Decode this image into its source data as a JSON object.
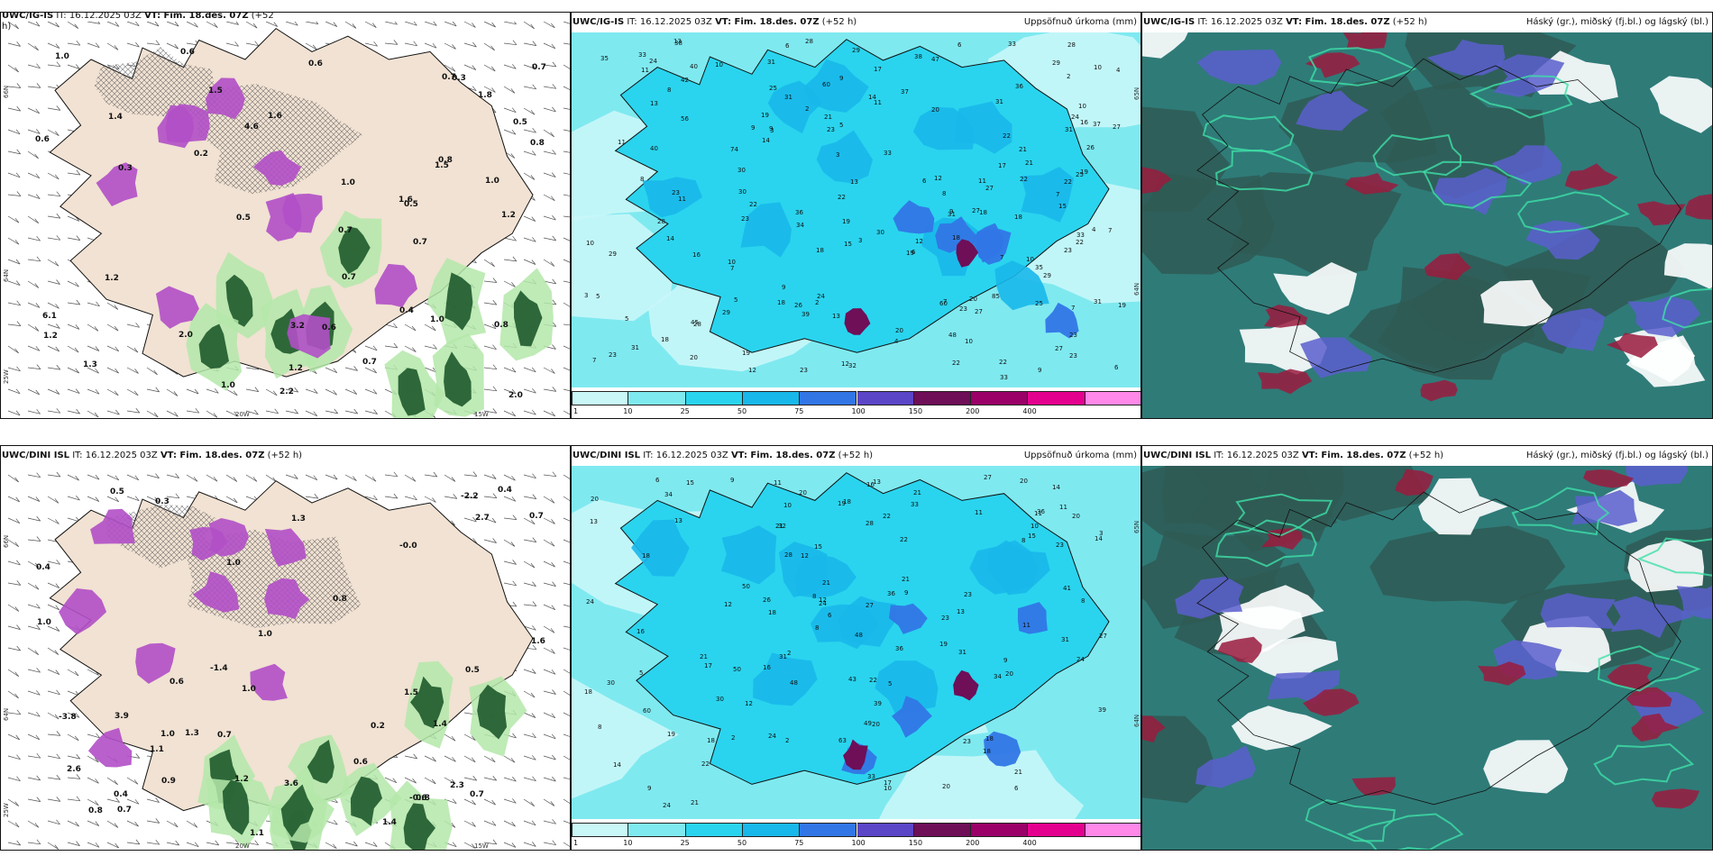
{
  "panels": {
    "top_left": {
      "title_model": "UWC/IG-IS",
      "title_it": "IT: 16.12.2025 03Z",
      "title_vt": "VT: Fim. 18.des. 07Z",
      "title_lead": "(+52",
      "title_cont": "h)",
      "lat_labels": [
        "66N",
        "64N",
        "25W"
      ],
      "lon_labels": [
        "20W",
        "15W"
      ],
      "wind_values": [
        "0.6",
        "0.2",
        "0.7",
        "0.7",
        "1.0",
        "0.5",
        "1.2",
        "0.5",
        "1.0",
        "0.4",
        "0.3",
        "2.2",
        "1.6",
        "0.6",
        "1.2",
        "2.0",
        "3.2",
        "1.5",
        "1.0",
        "1.3",
        "0.5",
        "0.7",
        "0.8",
        "1.5",
        "0.6",
        "4.6",
        "6.1",
        "2.0",
        "1.2",
        "0.3",
        "1.0",
        "1.4",
        "0.7",
        "1.8",
        "1.6",
        "0.6",
        "0.8",
        "1.2",
        "1.0",
        "0.8",
        "0.7",
        "0.7"
      ]
    },
    "top_mid": {
      "title_model": "UWC/IG-IS",
      "title_it": "IT: 16.12.2025 03Z",
      "title_vt": "VT: Fim. 18.des. 07Z",
      "title_lead": "(+52 h)",
      "title_right": "Uppsöfnuð úrkoma (mm)",
      "lat_labels": [
        "65N",
        "64N"
      ],
      "precip_values": [
        "3",
        "2",
        "2",
        "16",
        "19",
        "22",
        "14",
        "5",
        "6",
        "2",
        "31",
        "74",
        "11",
        "23",
        "22",
        "5",
        "6",
        "9",
        "15",
        "11",
        "40",
        "12",
        "3",
        "7",
        "17",
        "27",
        "38",
        "36",
        "12",
        "25",
        "7",
        "26",
        "56",
        "8",
        "7",
        "47",
        "13",
        "33",
        "30",
        "31",
        "8",
        "3",
        "45",
        "31",
        "15",
        "16",
        "11",
        "27",
        "4",
        "10",
        "9",
        "19",
        "18",
        "12",
        "31",
        "4",
        "7",
        "35",
        "10",
        "18",
        "20",
        "6",
        "7",
        "23",
        "13",
        "14",
        "20",
        "39",
        "60",
        "22",
        "3",
        "9",
        "5",
        "10",
        "40",
        "7",
        "37",
        "18",
        "11",
        "23",
        "23",
        "18",
        "27",
        "6",
        "33",
        "48",
        "21",
        "4",
        "36",
        "10",
        "27",
        "18",
        "13",
        "26",
        "7",
        "24",
        "9",
        "19",
        "18",
        "6",
        "31",
        "30",
        "38",
        "34",
        "21",
        "22",
        "9",
        "28",
        "10",
        "29",
        "31",
        "85",
        "14",
        "27",
        "8",
        "23",
        "17",
        "5",
        "9",
        "12",
        "19",
        "20",
        "29",
        "22",
        "35",
        "13",
        "11",
        "25",
        "10",
        "22",
        "20",
        "37",
        "28",
        "24",
        "33",
        "23",
        "29",
        "23",
        "25",
        "28",
        "19",
        "22",
        "32",
        "33",
        "21",
        "22",
        "23",
        "30",
        "19",
        "29",
        "23",
        "10",
        "24",
        "31",
        "60",
        "28",
        "29",
        "33",
        "42"
      ],
      "colorbar": {
        "ticks": [
          "1",
          "10",
          "25",
          "50",
          "75",
          "100",
          "150",
          "200",
          "400"
        ],
        "colors": [
          "#c9f7f8",
          "#7fe9f0",
          "#2ad4ee",
          "#18b8ea",
          "#3276e6",
          "#5a46c6",
          "#6e0f58",
          "#9a0068",
          "#e4008e",
          "#ff88e8"
        ]
      }
    },
    "top_right": {
      "title_model": "UWC/IG-IS",
      "title_it": "IT: 16.12.2025 03Z",
      "title_vt": "VT: Fim. 18.des. 07Z",
      "title_lead": "(+52 h)",
      "title_right": "Háský (gr.), miðský (fj.bl.) og lágský (bl.)"
    },
    "bottom_left": {
      "title_model": "UWC/DINI ISL",
      "title_it": "IT: 16.12.2025 03Z",
      "title_vt": "VT: Fim. 18.des. 07Z",
      "title_lead": "(+52 h)",
      "lat_labels": [
        "66N",
        "64N",
        "25W"
      ],
      "lon_labels": [
        "20W",
        "15W"
      ],
      "wind_values": [
        "0.4",
        "0.7",
        "1.4",
        "0.7",
        "1.6",
        "0.3",
        "0.5",
        "1.0",
        "0.4",
        "1.1",
        "1.4",
        "0.4",
        "-2.2",
        "-3.8",
        "3.6",
        "0.9",
        "1.0",
        "1.1",
        "2.7",
        "2.3",
        "0.7",
        "0.2",
        "-1.4",
        "-0.6",
        "-0.0",
        "1.0",
        "0.5",
        "2.6",
        "1.5",
        "0.8",
        "1.3",
        "0.6",
        "1.0",
        "0.7",
        "3.9",
        "0.8",
        "1.3",
        "1.2",
        "0.6",
        "0.8",
        "1.0"
      ]
    },
    "bottom_mid": {
      "title_model": "UWC/DINI ISL",
      "title_it": "IT: 16.12.2025 03Z",
      "title_vt": "VT: Fim. 18.des. 07Z",
      "title_lead": "(+52 h)",
      "title_right": "Uppsöfnuð úrkoma (mm)",
      "lat_labels": [
        "65N",
        "64N"
      ],
      "precip_values": [
        "18",
        "14",
        "6",
        "3",
        "2",
        "11",
        "21",
        "6",
        "2",
        "16",
        "9",
        "18",
        "19",
        "8",
        "8",
        "5",
        "34",
        "48",
        "12",
        "20",
        "10",
        "2",
        "6",
        "13",
        "39",
        "21",
        "20",
        "23",
        "21",
        "36",
        "9",
        "50",
        "11",
        "13",
        "15",
        "19",
        "17",
        "15",
        "30",
        "8",
        "23",
        "13",
        "12",
        "13",
        "14",
        "26",
        "20",
        "11",
        "20",
        "18",
        "15",
        "24",
        "8",
        "39",
        "28",
        "9",
        "21",
        "22",
        "17",
        "27",
        "21",
        "31",
        "12",
        "33",
        "24",
        "20",
        "8",
        "41",
        "12",
        "20",
        "43",
        "36",
        "18",
        "30",
        "18",
        "9",
        "31",
        "48",
        "49",
        "11",
        "27",
        "23",
        "33",
        "10",
        "34",
        "36",
        "63",
        "22",
        "27",
        "19",
        "24",
        "18",
        "10",
        "24",
        "50",
        "21",
        "31",
        "60",
        "23",
        "32",
        "22",
        "24",
        "18",
        "22",
        "16",
        "28",
        "16",
        "20",
        "5",
        "11",
        "21",
        "14"
      ],
      "colorbar": {
        "ticks": [
          "1",
          "10",
          "25",
          "50",
          "75",
          "100",
          "150",
          "200",
          "400"
        ],
        "colors": [
          "#c9f7f8",
          "#7fe9f0",
          "#2ad4ee",
          "#18b8ea",
          "#3276e6",
          "#5a46c6",
          "#6e0f58",
          "#9a0068",
          "#e4008e",
          "#ff88e8"
        ]
      }
    },
    "bottom_right": {
      "title_model": "UWC/DINI ISL",
      "title_it": "IT: 16.12.2025 03Z",
      "title_vt": "VT: Fim. 18.des. 07Z",
      "title_lead": "(+52 h)",
      "title_right": "Háský (gr.), miðský (fj.bl.) og lágský (bl.)"
    }
  },
  "colors": {
    "land_beige": "#f1e2d3",
    "sea_white": "#ffffff",
    "precip_green_light": "#b4e7a9",
    "precip_green_dark": "#1e5a2c",
    "precip_purple": "#b14fc6",
    "cloud_dark": "#2f5b55",
    "cloud_teal": "#2f7b78",
    "cloud_blue": "#5b5fce",
    "cloud_red": "#9a1b3e"
  }
}
